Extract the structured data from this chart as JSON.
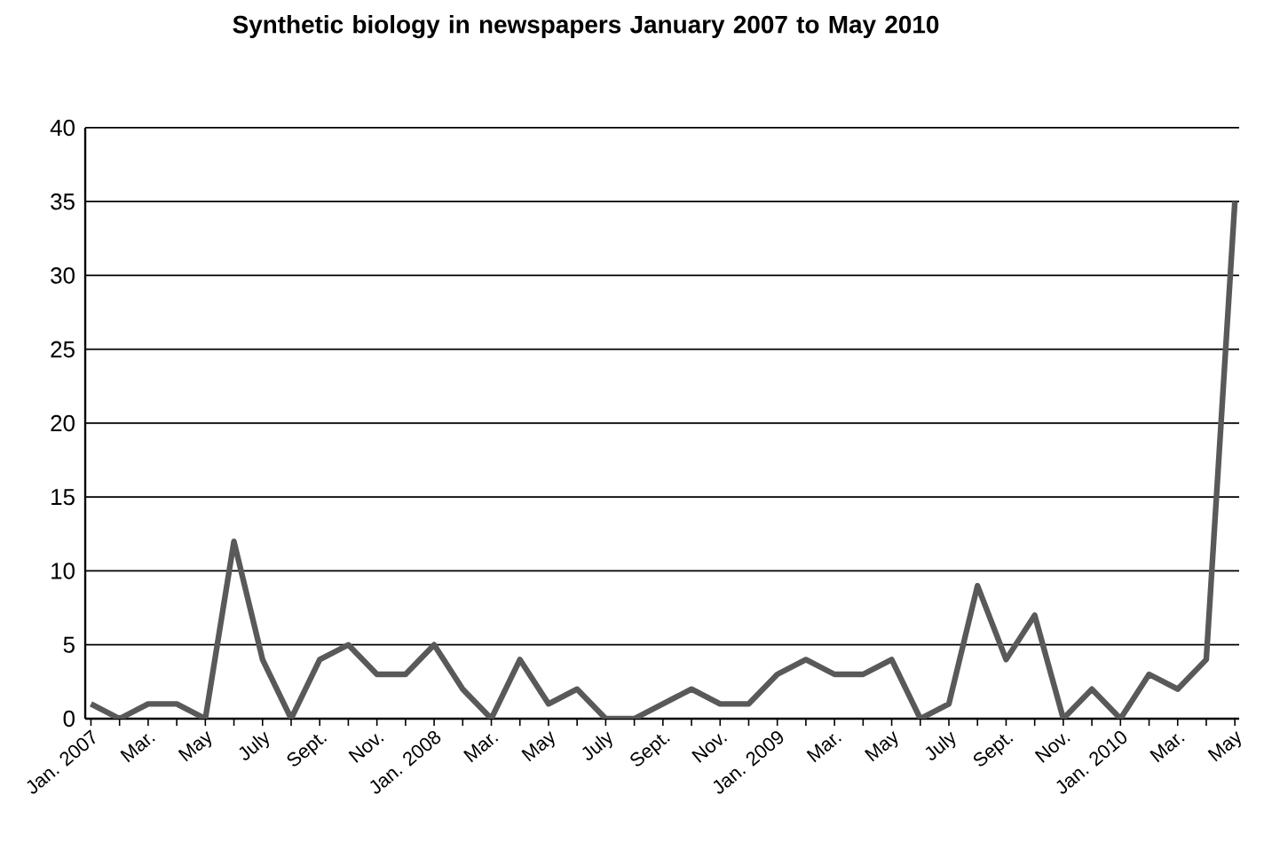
{
  "chart_data": {
    "type": "line",
    "title": "Synthetic biology in newspapers January 2007 to May 2010",
    "categories": [
      "Jan. 2007",
      null,
      "Mar.",
      null,
      "May",
      null,
      "July",
      null,
      "Sept.",
      null,
      "Nov.",
      null,
      "Jan. 2008",
      null,
      "Mar.",
      null,
      "May",
      null,
      "July",
      null,
      "Sept.",
      null,
      "Nov.",
      null,
      "Jan. 2009",
      null,
      "Mar.",
      null,
      "May",
      null,
      "July",
      null,
      "Sept.",
      null,
      "Nov.",
      null,
      "Jan. 2010",
      null,
      "Mar.",
      null,
      "May"
    ],
    "series": [
      {
        "color": "#595959",
        "values": [
          1,
          0,
          1,
          1,
          0,
          12,
          4,
          0,
          4,
          5,
          3,
          3,
          5,
          2,
          0,
          4,
          1,
          2,
          0,
          0,
          1,
          2,
          1,
          1,
          3,
          4,
          3,
          3,
          4,
          0,
          1,
          9,
          4,
          7,
          0,
          2,
          0,
          3,
          2,
          4,
          35
        ]
      }
    ],
    "ylim": [
      0,
      40
    ],
    "yticks": [
      0,
      5,
      10,
      15,
      20,
      25,
      30,
      35,
      40
    ],
    "grid": "y",
    "marker": "none",
    "line_style": "solid"
  }
}
